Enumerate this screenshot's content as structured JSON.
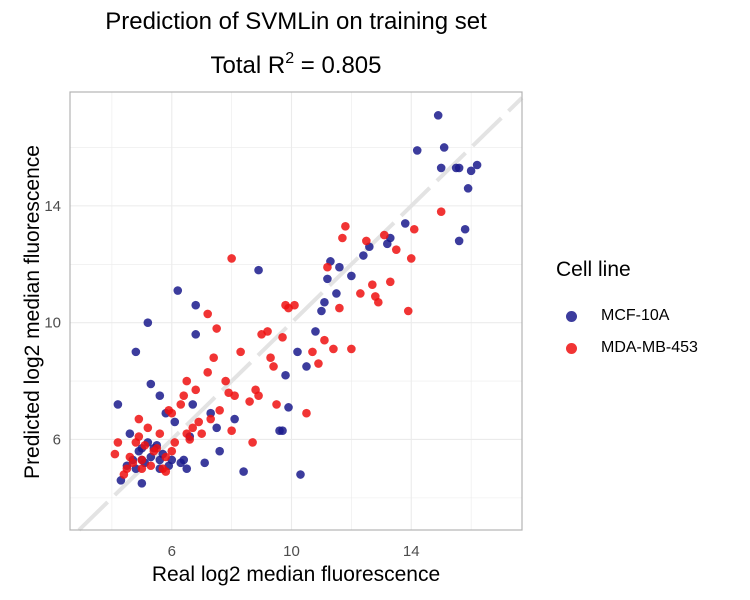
{
  "chart_data": {
    "type": "scatter",
    "title_line1": "Prediction of SVMLin on training set",
    "title_line2_prefix": "Total R",
    "title_line2_sup": "2",
    "title_line2_suffix": " = 0.805",
    "xlabel": "Real log2 median fluorescence",
    "ylabel": "Predicted log2 median fluorescence",
    "xlim": [
      2.6,
      17.7
    ],
    "ylim": [
      2.9,
      17.9
    ],
    "xticks": [
      6,
      10,
      14
    ],
    "yticks": [
      6,
      10,
      14
    ],
    "grid": true,
    "diagonal_reference_line": true,
    "legend": {
      "title": "Cell line",
      "position": "right"
    },
    "series": [
      {
        "name": "MCF-10A",
        "color": "#1a1a8c",
        "points": [
          [
            4.2,
            7.2
          ],
          [
            4.3,
            4.6
          ],
          [
            4.5,
            5.1
          ],
          [
            4.6,
            6.2
          ],
          [
            4.7,
            5.3
          ],
          [
            4.8,
            5.0
          ],
          [
            4.8,
            9.0
          ],
          [
            4.9,
            5.6
          ],
          [
            5.0,
            5.3
          ],
          [
            5.0,
            4.5
          ],
          [
            5.1,
            5.2
          ],
          [
            5.2,
            5.9
          ],
          [
            5.3,
            5.4
          ],
          [
            5.3,
            7.9
          ],
          [
            5.4,
            5.7
          ],
          [
            5.5,
            5.8
          ],
          [
            5.6,
            5.3
          ],
          [
            5.6,
            7.5
          ],
          [
            5.7,
            5.5
          ],
          [
            5.8,
            6.9
          ],
          [
            5.9,
            5.1
          ],
          [
            6.0,
            5.3
          ],
          [
            5.2,
            10.0
          ],
          [
            6.2,
            11.1
          ],
          [
            6.1,
            6.6
          ],
          [
            6.3,
            5.2
          ],
          [
            6.4,
            5.3
          ],
          [
            6.5,
            5.0
          ],
          [
            6.6,
            6.1
          ],
          [
            6.7,
            7.2
          ],
          [
            6.8,
            9.6
          ],
          [
            6.8,
            10.6
          ],
          [
            7.1,
            5.2
          ],
          [
            7.3,
            6.9
          ],
          [
            7.5,
            6.4
          ],
          [
            7.6,
            5.6
          ],
          [
            8.1,
            6.7
          ],
          [
            8.4,
            4.9
          ],
          [
            8.9,
            11.8
          ],
          [
            9.6,
            6.3
          ],
          [
            9.7,
            6.3
          ],
          [
            9.9,
            7.1
          ],
          [
            9.8,
            8.2
          ],
          [
            10.2,
            9.0
          ],
          [
            10.3,
            4.8
          ],
          [
            10.5,
            8.5
          ],
          [
            10.8,
            9.7
          ],
          [
            11.0,
            10.4
          ],
          [
            11.1,
            10.7
          ],
          [
            11.2,
            11.5
          ],
          [
            11.3,
            12.1
          ],
          [
            11.5,
            11.0
          ],
          [
            11.6,
            11.9
          ],
          [
            12.0,
            11.6
          ],
          [
            12.4,
            12.3
          ],
          [
            12.6,
            12.6
          ],
          [
            13.2,
            12.7
          ],
          [
            13.3,
            12.9
          ],
          [
            13.8,
            13.4
          ],
          [
            14.2,
            15.9
          ],
          [
            14.9,
            17.1
          ],
          [
            15.0,
            15.3
          ],
          [
            15.1,
            16.0
          ],
          [
            15.5,
            15.3
          ],
          [
            15.6,
            12.8
          ],
          [
            15.6,
            15.3
          ],
          [
            15.8,
            13.2
          ],
          [
            15.9,
            14.6
          ],
          [
            16.0,
            15.2
          ],
          [
            16.2,
            15.4
          ],
          [
            5.0,
            5.7
          ],
          [
            5.6,
            5.0
          ]
        ]
      },
      {
        "name": "MDA-MB-453",
        "color": "#ee1111",
        "points": [
          [
            4.1,
            5.5
          ],
          [
            4.2,
            5.9
          ],
          [
            4.4,
            4.8
          ],
          [
            4.5,
            5.0
          ],
          [
            4.6,
            5.4
          ],
          [
            4.7,
            5.2
          ],
          [
            4.8,
            5.9
          ],
          [
            4.9,
            6.7
          ],
          [
            5.0,
            5.0
          ],
          [
            5.0,
            5.3
          ],
          [
            5.1,
            5.8
          ],
          [
            5.2,
            6.4
          ],
          [
            5.3,
            5.1
          ],
          [
            5.4,
            5.6
          ],
          [
            5.5,
            5.7
          ],
          [
            5.6,
            6.2
          ],
          [
            5.7,
            5.0
          ],
          [
            5.8,
            5.4
          ],
          [
            5.9,
            7.0
          ],
          [
            6.0,
            5.6
          ],
          [
            6.0,
            6.9
          ],
          [
            6.1,
            5.9
          ],
          [
            6.3,
            7.2
          ],
          [
            6.4,
            7.5
          ],
          [
            6.5,
            6.2
          ],
          [
            6.5,
            8.0
          ],
          [
            6.6,
            6.0
          ],
          [
            6.7,
            6.4
          ],
          [
            6.8,
            7.7
          ],
          [
            6.9,
            6.6
          ],
          [
            7.0,
            6.2
          ],
          [
            7.2,
            8.3
          ],
          [
            7.2,
            10.3
          ],
          [
            7.3,
            6.7
          ],
          [
            7.4,
            8.8
          ],
          [
            7.5,
            9.8
          ],
          [
            7.6,
            7.0
          ],
          [
            7.8,
            8.0
          ],
          [
            7.9,
            7.6
          ],
          [
            8.0,
            12.2
          ],
          [
            8.0,
            6.3
          ],
          [
            8.1,
            7.5
          ],
          [
            8.3,
            9.0
          ],
          [
            8.6,
            7.3
          ],
          [
            8.7,
            5.9
          ],
          [
            8.8,
            7.7
          ],
          [
            8.9,
            7.5
          ],
          [
            9.0,
            9.6
          ],
          [
            9.2,
            9.7
          ],
          [
            9.3,
            8.8
          ],
          [
            9.4,
            8.5
          ],
          [
            9.5,
            7.2
          ],
          [
            9.7,
            9.5
          ],
          [
            9.8,
            10.6
          ],
          [
            9.9,
            10.5
          ],
          [
            10.1,
            10.6
          ],
          [
            10.5,
            6.9
          ],
          [
            10.7,
            9.0
          ],
          [
            10.9,
            8.6
          ],
          [
            11.1,
            9.4
          ],
          [
            11.2,
            11.9
          ],
          [
            11.4,
            9.1
          ],
          [
            11.6,
            10.5
          ],
          [
            11.7,
            12.9
          ],
          [
            11.8,
            13.3
          ],
          [
            12.0,
            9.1
          ],
          [
            12.3,
            11.0
          ],
          [
            12.5,
            12.8
          ],
          [
            12.7,
            11.3
          ],
          [
            12.8,
            10.9
          ],
          [
            12.9,
            10.7
          ],
          [
            13.1,
            13.0
          ],
          [
            13.3,
            11.4
          ],
          [
            13.5,
            12.5
          ],
          [
            13.9,
            10.4
          ],
          [
            14.0,
            12.2
          ],
          [
            14.1,
            13.2
          ],
          [
            15.0,
            13.8
          ],
          [
            4.9,
            6.1
          ],
          [
            5.8,
            4.9
          ]
        ]
      }
    ]
  }
}
